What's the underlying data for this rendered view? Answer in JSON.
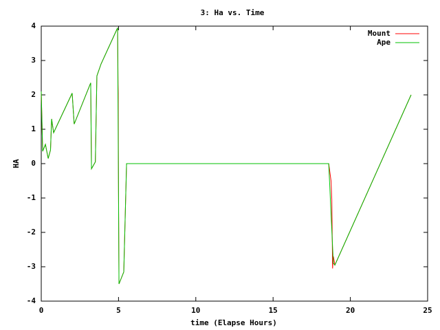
{
  "chart_data": {
    "type": "line",
    "title": "3: Ha vs. Time",
    "x_label": "time (Elapse Hours)",
    "y_label": "HA",
    "xlim": [
      0,
      25
    ],
    "xticks": [
      0,
      5,
      10,
      15,
      20,
      25
    ],
    "ylim": [
      -4,
      4
    ],
    "yticks": [
      -4,
      -3,
      -2,
      -1,
      0,
      1,
      2,
      3,
      4
    ],
    "legend": "top-right",
    "series": [
      {
        "name": "Mount",
        "color": "#ff0000",
        "x": [
          0,
          0.09,
          0.27,
          0.45,
          0.6,
          0.67,
          0.8,
          2.0,
          2.13,
          3.2,
          3.25,
          3.5,
          3.6,
          3.87,
          4.94,
          4.97,
          4.98,
          5.0,
          5.01,
          5.02,
          5.03,
          5.34,
          5.52,
          18.6,
          18.75,
          18.8,
          18.85,
          18.9,
          19.0,
          23.93
        ],
        "values": [
          2.1,
          0.36,
          0.56,
          0.15,
          0.4,
          1.3,
          0.9,
          2.05,
          1.15,
          2.35,
          -0.15,
          0.05,
          2.55,
          2.9,
          3.95,
          2.3,
          2.05,
          -0.8,
          -1.65,
          -2.7,
          -3.5,
          -3.15,
          0,
          0,
          -0.5,
          -1.05,
          -3.05,
          -2.7,
          -2.95,
          2.0
        ]
      },
      {
        "name": "Ape",
        "color": "#00c000",
        "x": [
          0,
          0.09,
          0.27,
          0.45,
          0.6,
          0.67,
          0.8,
          2.0,
          2.13,
          3.2,
          3.25,
          3.5,
          3.6,
          3.87,
          4.94,
          5.03,
          5.34,
          5.52,
          18.6,
          18.9,
          19.0,
          23.93
        ],
        "values": [
          2.1,
          0.36,
          0.56,
          0.15,
          0.4,
          1.3,
          0.9,
          2.05,
          1.15,
          2.35,
          -0.15,
          0.05,
          2.55,
          2.9,
          3.95,
          -3.5,
          -3.15,
          0,
          0,
          -2.9,
          -2.95,
          2.0
        ]
      }
    ]
  }
}
